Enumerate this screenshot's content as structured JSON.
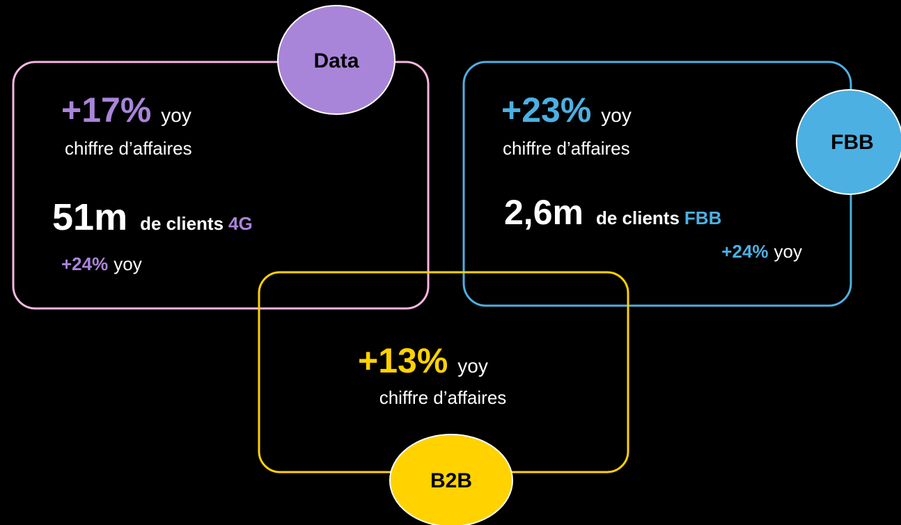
{
  "panels": [
    {
      "label": "Data",
      "growth": "+17%",
      "growth_unit": "yoy",
      "growth_caption": "chiffre d’affaires",
      "customers": "51m",
      "customers_text": "de clients",
      "customers_tag": "4G",
      "customers_growth": "+24%",
      "customers_growth_unit": "yoy"
    },
    {
      "label": "FBB",
      "growth": "+23%",
      "growth_unit": "yoy",
      "growth_caption": "chiffre d’affaires",
      "customers": "2,6m",
      "customers_text": "de clients",
      "customers_tag": "FBB",
      "customers_growth": "+24%",
      "customers_growth_unit": "yoy"
    },
    {
      "label": "B2B",
      "growth": "+13%",
      "growth_unit": "yoy",
      "growth_caption": "chiffre d’affaires"
    }
  ]
}
